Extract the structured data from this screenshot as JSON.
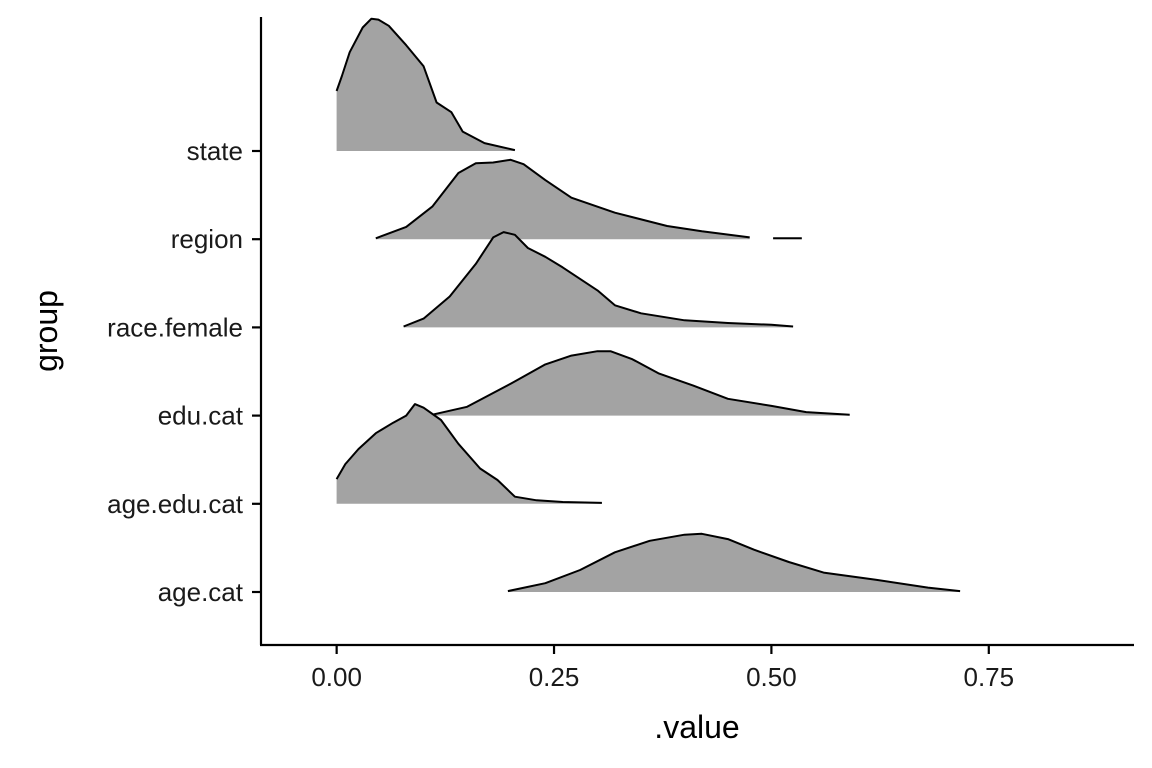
{
  "chart_data": {
    "type": "ridgeline",
    "xlabel": ".value",
    "ylabel": "group",
    "xlim": [
      -0.087,
      0.917
    ],
    "x_ticks": [
      0.0,
      0.25,
      0.5,
      0.75
    ],
    "x_tick_labels": [
      "0.00",
      "0.25",
      "0.50",
      "0.75"
    ],
    "categories": [
      "age.cat",
      "age.edu.cat",
      "edu.cat",
      "race.female",
      "region",
      "state"
    ],
    "fill_color": "#a3a3a3",
    "line_color": "#000000",
    "grid": false,
    "series": [
      {
        "name": "age.cat",
        "segments": [
          [
            [
              0.197,
              0.01
            ],
            [
              0.24,
              0.1
            ],
            [
              0.28,
              0.25
            ],
            [
              0.32,
              0.45
            ],
            [
              0.36,
              0.58
            ],
            [
              0.4,
              0.65
            ],
            [
              0.42,
              0.66
            ],
            [
              0.45,
              0.6
            ],
            [
              0.48,
              0.48
            ],
            [
              0.52,
              0.34
            ],
            [
              0.56,
              0.22
            ],
            [
              0.62,
              0.14
            ],
            [
              0.68,
              0.05
            ],
            [
              0.717,
              0.01
            ]
          ]
        ]
      },
      {
        "name": "age.edu.cat",
        "segments": [
          [
            [
              0.0,
              0.28
            ],
            [
              0.01,
              0.45
            ],
            [
              0.025,
              0.62
            ],
            [
              0.045,
              0.8
            ],
            [
              0.065,
              0.92
            ],
            [
              0.08,
              1.0
            ],
            [
              0.09,
              1.13
            ],
            [
              0.1,
              1.09
            ],
            [
              0.12,
              0.95
            ],
            [
              0.14,
              0.68
            ],
            [
              0.165,
              0.4
            ],
            [
              0.185,
              0.27
            ],
            [
              0.205,
              0.08
            ],
            [
              0.23,
              0.04
            ],
            [
              0.26,
              0.02
            ],
            [
              0.305,
              0.01
            ]
          ]
        ]
      },
      {
        "name": "edu.cat",
        "segments": [
          [
            [
              0.11,
              0.01
            ],
            [
              0.15,
              0.1
            ],
            [
              0.2,
              0.36
            ],
            [
              0.24,
              0.58
            ],
            [
              0.27,
              0.68
            ],
            [
              0.3,
              0.73
            ],
            [
              0.315,
              0.73
            ],
            [
              0.34,
              0.64
            ],
            [
              0.37,
              0.48
            ],
            [
              0.41,
              0.34
            ],
            [
              0.45,
              0.19
            ],
            [
              0.5,
              0.11
            ],
            [
              0.54,
              0.04
            ],
            [
              0.59,
              0.01
            ]
          ]
        ]
      },
      {
        "name": "race.female",
        "segments": [
          [
            [
              0.077,
              0.01
            ],
            [
              0.1,
              0.1
            ],
            [
              0.13,
              0.35
            ],
            [
              0.16,
              0.72
            ],
            [
              0.18,
              1.02
            ],
            [
              0.192,
              1.08
            ],
            [
              0.205,
              1.05
            ],
            [
              0.22,
              0.9
            ],
            [
              0.24,
              0.8
            ],
            [
              0.26,
              0.68
            ],
            [
              0.3,
              0.42
            ],
            [
              0.32,
              0.25
            ],
            [
              0.35,
              0.16
            ],
            [
              0.4,
              0.08
            ],
            [
              0.45,
              0.05
            ],
            [
              0.5,
              0.03
            ],
            [
              0.525,
              0.01
            ]
          ]
        ]
      },
      {
        "name": "region",
        "segments": [
          [
            [
              0.045,
              0.01
            ],
            [
              0.08,
              0.14
            ],
            [
              0.11,
              0.37
            ],
            [
              0.14,
              0.75
            ],
            [
              0.16,
              0.86
            ],
            [
              0.18,
              0.87
            ],
            [
              0.2,
              0.9
            ],
            [
              0.215,
              0.85
            ],
            [
              0.24,
              0.67
            ],
            [
              0.27,
              0.47
            ],
            [
              0.32,
              0.3
            ],
            [
              0.38,
              0.15
            ],
            [
              0.42,
              0.09
            ],
            [
              0.475,
              0.02
            ]
          ],
          [
            [
              0.502,
              0.01
            ],
            [
              0.535,
              0.01
            ]
          ]
        ]
      },
      {
        "name": "state",
        "segments": [
          [
            [
              0.0,
              0.68
            ],
            [
              0.006,
              0.85
            ],
            [
              0.015,
              1.12
            ],
            [
              0.03,
              1.4
            ],
            [
              0.04,
              1.5
            ],
            [
              0.048,
              1.49
            ],
            [
              0.06,
              1.42
            ],
            [
              0.08,
              1.2
            ],
            [
              0.1,
              0.96
            ],
            [
              0.115,
              0.55
            ],
            [
              0.132,
              0.44
            ],
            [
              0.145,
              0.22
            ],
            [
              0.17,
              0.09
            ],
            [
              0.205,
              0.01
            ]
          ]
        ]
      }
    ]
  }
}
